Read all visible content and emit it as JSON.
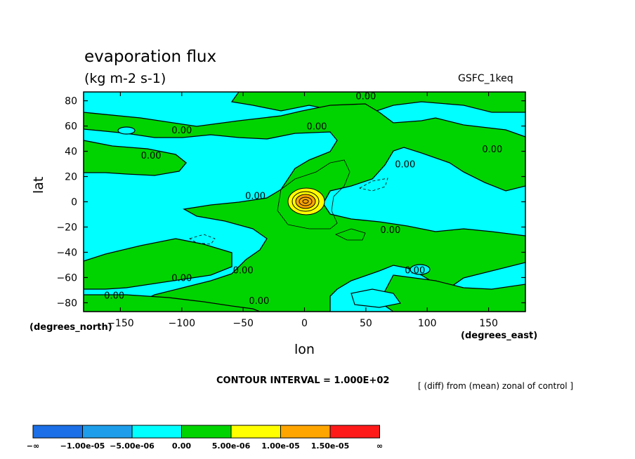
{
  "chart_data": {
    "type": "contour",
    "title": "evaporation flux",
    "units": "(kg m-2 s-1)",
    "dataset": "GSFC_1keq",
    "xlabel": "lon",
    "ylabel": "lat",
    "x_units": "(degrees_east)",
    "y_units": "(degrees_north)",
    "xlim": [
      -180,
      180
    ],
    "ylim": [
      -87,
      87
    ],
    "x_ticks": [
      -150,
      -100,
      -50,
      0,
      50,
      100,
      150
    ],
    "x_tick_labels": [
      "-150",
      "-100",
      "-50",
      "0",
      "50",
      "100",
      "150"
    ],
    "y_ticks": [
      80,
      60,
      40,
      20,
      0,
      -20,
      -40,
      -60,
      -80
    ],
    "y_tick_labels": [
      "80",
      "60",
      "40",
      "20",
      "0",
      "-20",
      "-40",
      "-60",
      "-80"
    ],
    "contour_interval_label": "CONTOUR INTERVAL = 1.000E+02",
    "description": "[ (diff) from (mean) zonal of control ]",
    "contour_labels": [
      {
        "text": "0.00",
        "lon": 50,
        "lat": 84
      },
      {
        "text": "0.00",
        "lon": 10,
        "lat": 60
      },
      {
        "text": "0.00",
        "lon": -100,
        "lat": 57
      },
      {
        "text": "0.00",
        "lon": -125,
        "lat": 37
      },
      {
        "text": "0.00",
        "lon": 153,
        "lat": 42
      },
      {
        "text": "0.00",
        "lon": 82,
        "lat": 30
      },
      {
        "text": "0.00",
        "lon": -40,
        "lat": 5
      },
      {
        "text": "0.00",
        "lon": 70,
        "lat": -22
      },
      {
        "text": "0.00",
        "lon": -100,
        "lat": -60
      },
      {
        "text": "0.00",
        "lon": -50,
        "lat": -54
      },
      {
        "text": "0.00",
        "lon": 90,
        "lat": -54
      },
      {
        "text": "0.00",
        "lon": -155,
        "lat": -74
      },
      {
        "text": "0.00",
        "lon": -37,
        "lat": -78
      }
    ],
    "colorbar": {
      "colors": [
        "#1c6fe6",
        "#1e9eea",
        "#00ffff",
        "#00d400",
        "#ffff00",
        "#ffa500",
        "#ff1a1a"
      ],
      "labels": [
        "-∞",
        "-1.00e-05",
        "-5.00e-06",
        "0.00",
        "5.00e-06",
        "1.00e-05",
        "1.50e-05",
        "∞"
      ]
    },
    "colors": {
      "negative_fill": "#00ffff",
      "positive_fill": "#00d400",
      "max_fill_1": "#ffff00",
      "max_fill_2": "#ffa500"
    }
  }
}
